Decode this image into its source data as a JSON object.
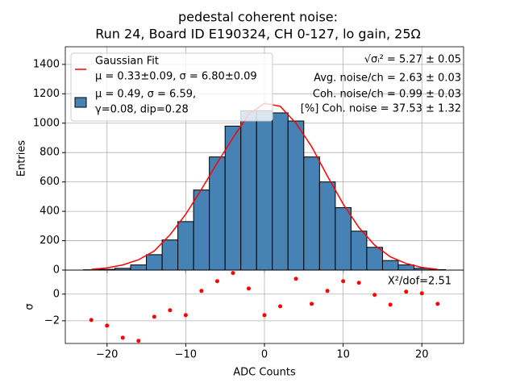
{
  "chart_data": [
    {
      "type": "histogram",
      "title": [
        "pedestal coherent noise:",
        "Run 24, Board ID E190324, CH 0-127, lo gain, 25Ω"
      ],
      "ylabel": "Entries",
      "bins": [
        -23,
        -21,
        -19,
        -17,
        -15,
        -13,
        -11,
        -9,
        -7,
        -5,
        -3,
        -1,
        1,
        3,
        5,
        7,
        9,
        11,
        13,
        15,
        17,
        19,
        21,
        23
      ],
      "counts": [
        2,
        5,
        12,
        35,
        105,
        205,
        330,
        545,
        770,
        980,
        1085,
        1085,
        1070,
        1015,
        770,
        600,
        425,
        265,
        155,
        65,
        35,
        12,
        3
      ],
      "color": "#4682b4",
      "hist_label": [
        "μ = 0.49, σ = 6.59,",
        "γ=0.08, dip=0.28"
      ],
      "fit": {
        "name": "Gaussian Fit",
        "label": "μ = 0.33±0.09, σ = 6.80±0.09",
        "color": "#ff0000",
        "x": [
          -22,
          -20,
          -18,
          -16,
          -14,
          -12,
          -10,
          -8,
          -6,
          -4,
          -2,
          0,
          2,
          4,
          6,
          8,
          10,
          12,
          14,
          16,
          18,
          20,
          22
        ],
        "values": [
          5,
          15,
          35,
          70,
          130,
          240,
          380,
          550,
          730,
          900,
          1060,
          1135,
          1115,
          1000,
          840,
          640,
          450,
          290,
          170,
          90,
          45,
          18,
          5
        ]
      },
      "annotations": [
        "√σᵢ² = 5.27 ± 0.05",
        "Avg. noise/ch = 2.63 ± 0.03",
        "Coh. noise/ch = 0.99 ± 0.03",
        "[%] Coh. noise = 37.53  ± 1.32"
      ],
      "xlim": [
        -25.3,
        25.3
      ],
      "xticks": [
        -20,
        -10,
        0,
        10,
        20
      ],
      "ylim": [
        0,
        1520
      ],
      "yticks": [
        0,
        200,
        400,
        600,
        800,
        1000,
        1200,
        1400
      ],
      "grid": true,
      "legend": "upper left"
    },
    {
      "type": "scatter",
      "xlabel": "ADC Counts",
      "ylabel": "σ",
      "color": "#ff0000",
      "annotation": "X²/dof=2.51",
      "x": [
        -22,
        -20,
        -18,
        -16,
        -14,
        -12,
        -10,
        -8,
        -6,
        -4,
        -2,
        0,
        2,
        4,
        6,
        8,
        10,
        12,
        14,
        16,
        18,
        20,
        22
      ],
      "values": [
        -1.94,
        -2.36,
        -3.27,
        -3.5,
        -1.7,
        -1.21,
        -1.58,
        0.24,
        0.97,
        1.58,
        0.42,
        -1.58,
        -0.91,
        1.15,
        -0.73,
        0.24,
        0.97,
        0.85,
        -0.06,
        -0.79,
        0.18,
        0.06,
        -0.73
      ],
      "xlim": [
        -25.3,
        25.3
      ],
      "xticks": [
        {
          "value": -20,
          "label": "−20"
        },
        {
          "value": -10,
          "label": "−10"
        },
        0,
        10,
        20
      ],
      "ylim": [
        -3.7,
        1.8
      ],
      "yticks": [
        {
          "value": -2,
          "label": "−2"
        },
        0
      ],
      "grid": true
    }
  ]
}
